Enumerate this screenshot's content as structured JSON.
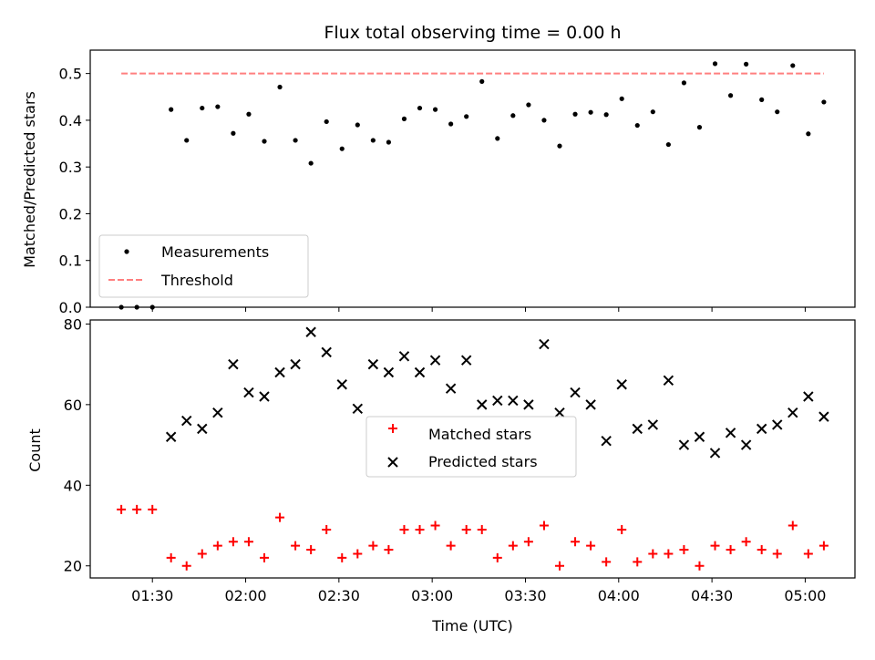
{
  "chart_data": [
    {
      "type": "scatter",
      "title": "Flux total observing time = 0.00 h",
      "xlabel": "",
      "ylabel": "Matched/Predicted stars",
      "xlim": [
        "01:10",
        "05:16"
      ],
      "ylim": [
        0,
        0.55
      ],
      "yticks": [
        "0.0",
        "0.1",
        "0.2",
        "0.3",
        "0.4",
        "0.5"
      ],
      "legend_position": "lower-left",
      "series": [
        {
          "name": "Measurements",
          "marker": "dot",
          "color": "#000000",
          "points": [
            [
              "01:20",
              0.0
            ],
            [
              "01:25",
              0.0
            ],
            [
              "01:30",
              0.0
            ],
            [
              "01:36",
              0.423
            ],
            [
              "01:41",
              0.357
            ],
            [
              "01:46",
              0.426
            ],
            [
              "01:51",
              0.429
            ],
            [
              "01:56",
              0.372
            ],
            [
              "02:01",
              0.413
            ],
            [
              "02:06",
              0.355
            ],
            [
              "02:11",
              0.471
            ],
            [
              "02:16",
              0.357
            ],
            [
              "02:21",
              0.308
            ],
            [
              "02:26",
              0.397
            ],
            [
              "02:31",
              0.339
            ],
            [
              "02:36",
              0.39
            ],
            [
              "02:41",
              0.357
            ],
            [
              "02:46",
              0.353
            ],
            [
              "02:51",
              0.403
            ],
            [
              "02:56",
              0.426
            ],
            [
              "03:01",
              0.423
            ],
            [
              "03:06",
              0.392
            ],
            [
              "03:11",
              0.408
            ],
            [
              "03:16",
              0.483
            ],
            [
              "03:21",
              0.361
            ],
            [
              "03:26",
              0.41
            ],
            [
              "03:31",
              0.433
            ],
            [
              "03:36",
              0.4
            ],
            [
              "03:41",
              0.345
            ],
            [
              "03:46",
              0.413
            ],
            [
              "03:51",
              0.417
            ],
            [
              "03:56",
              0.412
            ],
            [
              "04:01",
              0.446
            ],
            [
              "04:06",
              0.389
            ],
            [
              "04:11",
              0.418
            ],
            [
              "04:16",
              0.348
            ],
            [
              "04:21",
              0.48
            ],
            [
              "04:26",
              0.385
            ],
            [
              "04:31",
              0.521
            ],
            [
              "04:36",
              0.453
            ],
            [
              "04:41",
              0.52
            ],
            [
              "04:46",
              0.444
            ],
            [
              "04:51",
              0.418
            ],
            [
              "04:56",
              0.517
            ],
            [
              "05:01",
              0.371
            ],
            [
              "05:06",
              0.439
            ]
          ]
        },
        {
          "name": "Threshold",
          "type": "line",
          "style": "dashed",
          "color": "#ff7f7f",
          "points": [
            [
              "01:20",
              0.5
            ],
            [
              "05:06",
              0.5
            ]
          ]
        }
      ]
    },
    {
      "type": "scatter",
      "title": "",
      "xlabel": "Time (UTC)",
      "ylabel": "Count",
      "xlim": [
        "01:10",
        "05:16"
      ],
      "ylim": [
        17,
        81
      ],
      "yticks": [
        "20",
        "40",
        "60",
        "80"
      ],
      "xticks": [
        "01:30",
        "02:00",
        "02:30",
        "03:00",
        "03:30",
        "04:00",
        "04:30",
        "05:00"
      ],
      "legend_position": "center",
      "series": [
        {
          "name": "Matched stars",
          "marker": "plus",
          "color": "#ff0000",
          "points": [
            [
              "01:20",
              34
            ],
            [
              "01:25",
              34
            ],
            [
              "01:30",
              34
            ],
            [
              "01:36",
              22
            ],
            [
              "01:41",
              20
            ],
            [
              "01:46",
              23
            ],
            [
              "01:51",
              25
            ],
            [
              "01:56",
              26
            ],
            [
              "02:01",
              26
            ],
            [
              "02:06",
              22
            ],
            [
              "02:11",
              32
            ],
            [
              "02:16",
              25
            ],
            [
              "02:21",
              24
            ],
            [
              "02:26",
              29
            ],
            [
              "02:31",
              22
            ],
            [
              "02:36",
              23
            ],
            [
              "02:41",
              25
            ],
            [
              "02:46",
              24
            ],
            [
              "02:51",
              29
            ],
            [
              "02:56",
              29
            ],
            [
              "03:01",
              30
            ],
            [
              "03:06",
              25
            ],
            [
              "03:11",
              29
            ],
            [
              "03:16",
              29
            ],
            [
              "03:21",
              22
            ],
            [
              "03:26",
              25
            ],
            [
              "03:31",
              26
            ],
            [
              "03:36",
              30
            ],
            [
              "03:41",
              20
            ],
            [
              "03:46",
              26
            ],
            [
              "03:51",
              25
            ],
            [
              "03:56",
              21
            ],
            [
              "04:01",
              29
            ],
            [
              "04:06",
              21
            ],
            [
              "04:11",
              23
            ],
            [
              "04:16",
              23
            ],
            [
              "04:21",
              24
            ],
            [
              "04:26",
              20
            ],
            [
              "04:31",
              25
            ],
            [
              "04:36",
              24
            ],
            [
              "04:41",
              26
            ],
            [
              "04:46",
              24
            ],
            [
              "04:51",
              23
            ],
            [
              "04:56",
              30
            ],
            [
              "05:01",
              23
            ],
            [
              "05:06",
              25
            ]
          ]
        },
        {
          "name": "Predicted stars",
          "marker": "x",
          "color": "#000000",
          "points": [
            [
              "01:36",
              52
            ],
            [
              "01:41",
              56
            ],
            [
              "01:46",
              54
            ],
            [
              "01:51",
              58
            ],
            [
              "01:56",
              70
            ],
            [
              "02:01",
              63
            ],
            [
              "02:06",
              62
            ],
            [
              "02:11",
              68
            ],
            [
              "02:16",
              70
            ],
            [
              "02:21",
              78
            ],
            [
              "02:26",
              73
            ],
            [
              "02:31",
              65
            ],
            [
              "02:36",
              59
            ],
            [
              "02:41",
              70
            ],
            [
              "02:46",
              68
            ],
            [
              "02:51",
              72
            ],
            [
              "02:56",
              68
            ],
            [
              "03:01",
              71
            ],
            [
              "03:06",
              64
            ],
            [
              "03:11",
              71
            ],
            [
              "03:16",
              60
            ],
            [
              "03:21",
              61
            ],
            [
              "03:26",
              61
            ],
            [
              "03:31",
              60
            ],
            [
              "03:36",
              75
            ],
            [
              "03:41",
              58
            ],
            [
              "03:46",
              63
            ],
            [
              "03:51",
              60
            ],
            [
              "03:56",
              51
            ],
            [
              "04:01",
              65
            ],
            [
              "04:06",
              54
            ],
            [
              "04:11",
              55
            ],
            [
              "04:16",
              66
            ],
            [
              "04:21",
              50
            ],
            [
              "04:26",
              52
            ],
            [
              "04:31",
              48
            ],
            [
              "04:36",
              53
            ],
            [
              "04:41",
              50
            ],
            [
              "04:46",
              54
            ],
            [
              "04:51",
              55
            ],
            [
              "04:56",
              58
            ],
            [
              "05:01",
              62
            ],
            [
              "05:06",
              57
            ]
          ]
        }
      ]
    }
  ]
}
